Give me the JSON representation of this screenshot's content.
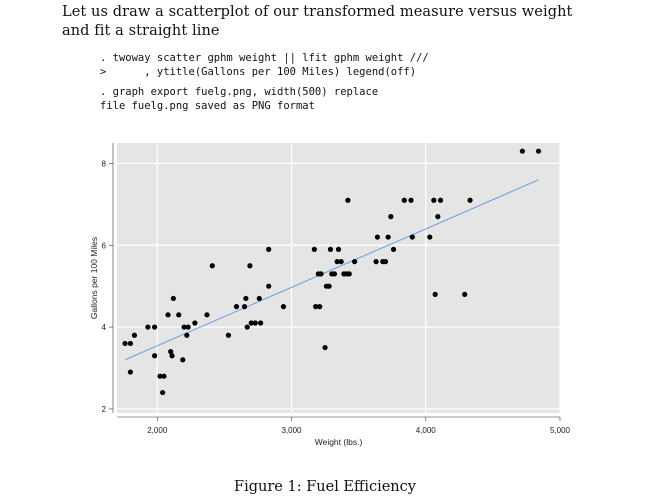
{
  "intro_text": "Let us draw a scatterplot of our transformed measure versus weight and fit a straight line",
  "code_block_1": [
    ". twoway scatter gphm weight || lfit gphm weight ///",
    ">      , ytitle(Gallons per 100 Miles) legend(off)"
  ],
  "code_block_2": [
    ". graph export fuelg.png, width(500) replace",
    "file fuelg.png saved as PNG format"
  ],
  "figure_caption": "Figure 1: Fuel Efficiency",
  "colors": {
    "plot_background": "#e5e5e5",
    "grid": "#ffffff",
    "points": "#000000",
    "fit_line": "#6a9fe0"
  },
  "chart_data": {
    "type": "scatter",
    "xlabel": "Weight (lbs.)",
    "ylabel": "Gallons per 100 Miles",
    "xlim": [
      1700,
      5000
    ],
    "ylim": [
      1.9,
      8.5
    ],
    "x_ticks": [
      2000,
      3000,
      4000,
      5000
    ],
    "x_tick_labels": [
      "2,000",
      "3,000",
      "4,000",
      "5,000"
    ],
    "y_ticks": [
      2,
      4,
      6,
      8
    ],
    "y_tick_labels": [
      "2",
      "4",
      "6",
      "8"
    ],
    "grid": true,
    "legend": "off",
    "fit_line": {
      "x": [
        1760,
        4840
      ],
      "y": [
        3.2,
        7.6
      ]
    },
    "points": [
      [
        1760,
        3.6
      ],
      [
        1800,
        3.6
      ],
      [
        1800,
        2.9
      ],
      [
        1830,
        3.8
      ],
      [
        1930,
        4.0
      ],
      [
        1980,
        4.0
      ],
      [
        1980,
        3.3
      ],
      [
        2020,
        2.8
      ],
      [
        2050,
        2.8
      ],
      [
        2040,
        2.4
      ],
      [
        2080,
        4.3
      ],
      [
        2100,
        3.4
      ],
      [
        2110,
        3.3
      ],
      [
        2120,
        4.7
      ],
      [
        2160,
        4.3
      ],
      [
        2190,
        3.2
      ],
      [
        2200,
        4.0
      ],
      [
        2220,
        3.8
      ],
      [
        2230,
        4.0
      ],
      [
        2280,
        4.1
      ],
      [
        2370,
        4.3
      ],
      [
        2410,
        5.5
      ],
      [
        2530,
        3.8
      ],
      [
        2590,
        4.5
      ],
      [
        2650,
        4.5
      ],
      [
        2660,
        4.7
      ],
      [
        2670,
        4.0
      ],
      [
        2690,
        5.5
      ],
      [
        2700,
        4.1
      ],
      [
        2730,
        4.1
      ],
      [
        2770,
        4.1
      ],
      [
        2760,
        4.7
      ],
      [
        2830,
        5.9
      ],
      [
        2830,
        5.0
      ],
      [
        2940,
        4.5
      ],
      [
        3170,
        5.9
      ],
      [
        3180,
        4.5
      ],
      [
        3210,
        4.5
      ],
      [
        3200,
        5.3
      ],
      [
        3220,
        5.3
      ],
      [
        3250,
        3.5
      ],
      [
        3260,
        5.0
      ],
      [
        3280,
        5.0
      ],
      [
        3290,
        5.9
      ],
      [
        3300,
        5.3
      ],
      [
        3320,
        5.3
      ],
      [
        3340,
        5.6
      ],
      [
        3350,
        5.9
      ],
      [
        3370,
        5.6
      ],
      [
        3390,
        5.3
      ],
      [
        3410,
        5.3
      ],
      [
        3430,
        5.3
      ],
      [
        3420,
        7.1
      ],
      [
        3470,
        5.6
      ],
      [
        3630,
        5.6
      ],
      [
        3640,
        6.2
      ],
      [
        3680,
        5.6
      ],
      [
        3700,
        5.6
      ],
      [
        3720,
        6.2
      ],
      [
        3740,
        6.7
      ],
      [
        3760,
        5.9
      ],
      [
        3840,
        7.1
      ],
      [
        3890,
        7.1
      ],
      [
        3900,
        6.2
      ],
      [
        4030,
        6.2
      ],
      [
        4060,
        7.1
      ],
      [
        4070,
        4.8
      ],
      [
        4090,
        6.7
      ],
      [
        4110,
        7.1
      ],
      [
        4290,
        4.8
      ],
      [
        4330,
        7.1
      ],
      [
        4720,
        8.3
      ],
      [
        4840,
        8.3
      ]
    ]
  }
}
